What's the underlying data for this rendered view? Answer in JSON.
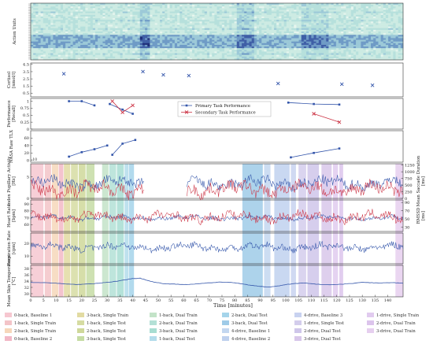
{
  "chart_data": {
    "type": "line",
    "x_axis": {
      "label": "Time [minutes]",
      "range": [
        0,
        146
      ],
      "ticks": [
        0,
        5,
        10,
        15,
        20,
        25,
        30,
        35,
        40,
        45,
        50,
        55,
        60,
        65,
        70,
        75,
        80,
        85,
        90,
        95,
        100,
        105,
        110,
        115,
        120,
        125,
        130,
        135,
        140
      ]
    },
    "panels": [
      {
        "id": "action_units",
        "ylabel": "Action Units",
        "kind": "heatmap"
      },
      {
        "id": "cortisol",
        "ylabel": "Cortisol [nmol/l]",
        "kind": "scatter",
        "yticks": [
          0.5,
          1.5,
          2.5,
          3.5,
          4.5
        ],
        "ylim": [
          0,
          4.7
        ],
        "grid": false,
        "series": [
          {
            "color": "#3355aa",
            "marker": "x",
            "points": [
              [
                13,
                3.2
              ],
              [
                44,
                3.5
              ],
              [
                52,
                3.05
              ],
              [
                62,
                2.95
              ],
              [
                97,
                1.85
              ],
              [
                122,
                1.75
              ],
              [
                134,
                1.6
              ]
            ]
          }
        ]
      },
      {
        "id": "performance",
        "ylabel": "Performance [Recall]",
        "kind": "line",
        "yticks": [
          0.0,
          0.25,
          0.5,
          0.75,
          1.0
        ],
        "ylim": [
          0,
          1.1
        ],
        "legend": {
          "position": "center",
          "entries": [
            "Primary Task Performance",
            "Secondary Task Performance"
          ]
        },
        "series": [
          {
            "name": "Primary Task Performance",
            "color": "#3355aa",
            "segments": [
              [
                [
                  15,
                  1.0
                ],
                [
                  20,
                  1.0
                ],
                [
                  25,
                  0.85
                ]
              ],
              [
                [
                  31,
                  0.9
                ],
                [
                  36,
                  0.7
                ],
                [
                  40,
                  0.55
                ]
              ],
              [
                [
                  101,
                  0.95
                ],
                [
                  111,
                  0.9
                ],
                [
                  121,
                  0.88
                ]
              ]
            ]
          },
          {
            "name": "Secondary Task Performance",
            "color": "#cc3344",
            "segments": [
              [
                [
                  32,
                  1.0
                ],
                [
                  36,
                  0.6
                ],
                [
                  40,
                  0.85
                ]
              ],
              [
                [
                  111,
                  0.55
                ],
                [
                  121,
                  0.25
                ]
              ]
            ]
          }
        ]
      },
      {
        "id": "nasa_tlx",
        "ylabel": "NASA Raw TLX",
        "kind": "line",
        "yticks": [
          0,
          20,
          40,
          60
        ],
        "ylim": [
          -5,
          80
        ],
        "scale_note": "·10",
        "series": [
          {
            "color": "#3355aa",
            "segments": [
              [
                [
                  15,
                  10
                ],
                [
                  20,
                  22
                ],
                [
                  25,
                  30
                ],
                [
                  30,
                  40
                ]
              ],
              [
                [
                  32,
                  15
                ],
                [
                  36,
                  45
                ],
                [
                  41,
                  55
                ]
              ],
              [
                [
                  102,
                  8
                ],
                [
                  111,
                  20
                ],
                [
                  121,
                  32
                ]
              ]
            ]
          }
        ]
      },
      {
        "id": "pupil",
        "ylabel": "Index Pupillary Activity [Hz]",
        "kind": "line",
        "dual_axis": true,
        "yticks": [
          0,
          5
        ],
        "ylim": [
          0,
          8
        ],
        "y2label": "Mean Saccade Duration [ms]",
        "y2ticks": [
          0,
          250,
          500,
          750,
          1000,
          1250
        ],
        "y2lim": [
          0,
          1300
        ],
        "gap": [
          44.5,
          61
        ],
        "series": [
          {
            "axis": "left",
            "color": "#3355aa",
            "base": 3.5,
            "amp": 1.6
          },
          {
            "axis": "right",
            "color": "#cc3344",
            "base": 350,
            "amp": 300
          }
        ]
      },
      {
        "id": "heart",
        "ylabel": "Heart Rate [bpm]",
        "kind": "line",
        "dual_axis": true,
        "yticks": [
          60,
          70,
          80,
          90
        ],
        "ylim": [
          50,
          96
        ],
        "y2label": "RMSSD [ms]",
        "y2ticks": [
          30,
          50,
          70,
          90
        ],
        "y2lim": [
          20,
          96
        ],
        "series": [
          {
            "axis": "left",
            "color": "#3355aa",
            "base": 70,
            "amp": 4
          },
          {
            "axis": "right",
            "color": "#cc3344",
            "base": 55,
            "amp": 14
          }
        ]
      },
      {
        "id": "respiration",
        "ylabel": "Respiration Rate [cpm]",
        "kind": "line",
        "yticks": [
          10,
          20
        ],
        "ylim": [
          4,
          28
        ],
        "series": [
          {
            "color": "#3355aa",
            "base": 17,
            "amp": 3.5
          }
        ]
      },
      {
        "id": "temperature",
        "ylabel": "Mean Skin Temperature [°C]",
        "kind": "line",
        "yticks": [
          30,
          32,
          34,
          36,
          38
        ],
        "ylim": [
          29,
          39
        ],
        "series": [
          {
            "color": "#3355aa",
            "points": [
              [
                0,
                33.6
              ],
              [
                6,
                33.5
              ],
              [
                12,
                33.2
              ],
              [
                18,
                32.9
              ],
              [
                24,
                33.1
              ],
              [
                30,
                33.6
              ],
              [
                34,
                34.0
              ],
              [
                40,
                34.8
              ],
              [
                43,
                34.9
              ],
              [
                47,
                33.9
              ],
              [
                52,
                33.2
              ],
              [
                57,
                33.0
              ],
              [
                62,
                32.9
              ],
              [
                68,
                33.3
              ],
              [
                74,
                33.7
              ],
              [
                80,
                33.5
              ],
              [
                86,
                32.7
              ],
              [
                90,
                32.3
              ],
              [
                94,
                32.1
              ],
              [
                98,
                32.6
              ],
              [
                102,
                33.1
              ],
              [
                107,
                33.4
              ],
              [
                112,
                33.0
              ],
              [
                118,
                32.8
              ],
              [
                124,
                33.1
              ],
              [
                130,
                33.6
              ],
              [
                136,
                33.4
              ],
              [
                142,
                33.5
              ],
              [
                146,
                33.3
              ]
            ]
          }
        ]
      }
    ],
    "phases": [
      {
        "label": "0-back, Baseline 1",
        "color": "#f6c7d0",
        "start": 0,
        "end": 5
      },
      {
        "label": "1-back, Single Train",
        "color": "#f3c4c8",
        "start": 5.5,
        "end": 8
      },
      {
        "label": "2-back, Single Train",
        "color": "#f6d7ba",
        "start": 8.3,
        "end": 10.8
      },
      {
        "label": "0-back, Baseline 2",
        "color": "#f2b8c6",
        "start": 11,
        "end": 12.8
      },
      {
        "label": "3-back, Single Train",
        "color": "#e2dba2",
        "start": 13,
        "end": 15.5
      },
      {
        "label": "1-back, Single Test",
        "color": "#d6dca2",
        "start": 15.8,
        "end": 18.5
      },
      {
        "label": "2-back, Single Test",
        "color": "#cfd89a",
        "start": 18.8,
        "end": 21.5
      },
      {
        "label": "3-back, Single Test",
        "color": "#c6dca4",
        "start": 21.8,
        "end": 25
      },
      {
        "label": "1-back, Dual Train",
        "color": "#c3e3c8",
        "start": 28,
        "end": 30.5
      },
      {
        "label": "2-back, Dual Train",
        "color": "#b3e0d6",
        "start": 30.8,
        "end": 33.5
      },
      {
        "label": "3-back, Dual Train",
        "color": "#a7ddd2",
        "start": 33.8,
        "end": 36.5
      },
      {
        "label": "1-back, Dual Test",
        "color": "#b3dceb",
        "start": 36.8,
        "end": 38.3
      },
      {
        "label": "2-back, Dual Test",
        "color": "#a5d4ea",
        "start": 38.5,
        "end": 40.5
      },
      {
        "label": "3-back, Dual Test",
        "color": "#9fcbe8",
        "start": 83,
        "end": 91
      },
      {
        "label": "4-drive, Baseline 1",
        "color": "#c3d7f0",
        "start": 91.5,
        "end": 94
      },
      {
        "label": "4-drive, Baseline 2",
        "color": "#bfd1ee",
        "start": 95.5,
        "end": 101.5
      },
      {
        "label": "4-drive, Baseline 3",
        "color": "#c8d2f0",
        "start": 102,
        "end": 104
      },
      {
        "label": "1-drive, Single Test",
        "color": "#d3cdec",
        "start": 105,
        "end": 108
      },
      {
        "label": "2-drive, Dual Test",
        "color": "#cfc6ea",
        "start": 108.5,
        "end": 113
      },
      {
        "label": "3-drive, Dual Test",
        "color": "#d8c7ea",
        "start": 114,
        "end": 118
      },
      {
        "label": "1-drive, Single Train",
        "color": "#e1cbef",
        "start": 118.5,
        "end": 120.5
      },
      {
        "label": "2-drive, Dual Train",
        "color": "#dcc4ec",
        "start": 121,
        "end": 122.5
      },
      {
        "label": "3-drive, Dual Train",
        "color": "#e6cfef",
        "start": 143,
        "end": 146
      }
    ]
  }
}
